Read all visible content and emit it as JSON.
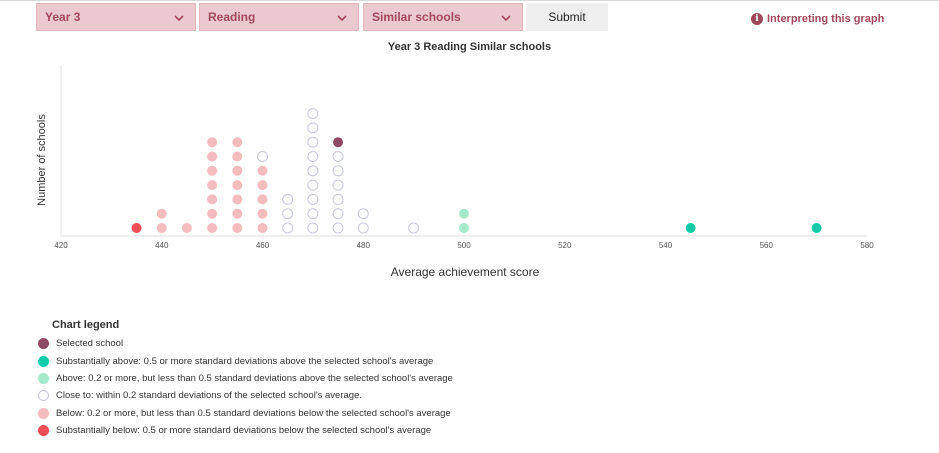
{
  "filters": {
    "year": "Year 3",
    "subject": "Reading",
    "group": "Similar schools",
    "submit_label": "Submit"
  },
  "help_link": "Interpreting this graph",
  "colors": {
    "selected": "#8e4a63",
    "substantially_above": "#12c9a8",
    "above": "#a4eacb",
    "close": "#ffffff",
    "below": "#f5bcbf",
    "substantially_below": "#ee4f56"
  },
  "chart_data": {
    "type": "scatter",
    "title": "Year 3 Reading Similar schools",
    "xlabel": "Average achievement score",
    "ylabel": "Number of schools",
    "xlim": [
      420,
      580
    ],
    "ylim": [
      0,
      12
    ],
    "xticks": [
      420,
      440,
      460,
      480,
      500,
      520,
      540,
      560,
      580
    ],
    "grid": false,
    "columns": [
      {
        "x": 435,
        "counts": {
          "substantially_below": 1
        }
      },
      {
        "x": 440,
        "counts": {
          "below": 2
        }
      },
      {
        "x": 445,
        "counts": {
          "below": 1
        }
      },
      {
        "x": 450,
        "counts": {
          "below": 7
        }
      },
      {
        "x": 455,
        "counts": {
          "below": 7
        }
      },
      {
        "x": 460,
        "counts": {
          "below": 5,
          "close": 1
        }
      },
      {
        "x": 465,
        "counts": {
          "close": 3
        }
      },
      {
        "x": 470,
        "counts": {
          "close": 9
        }
      },
      {
        "x": 475,
        "counts": {
          "close": 6,
          "selected": 1
        }
      },
      {
        "x": 480,
        "counts": {
          "close": 2
        }
      },
      {
        "x": 490,
        "counts": {
          "close": 1
        }
      },
      {
        "x": 500,
        "counts": {
          "above": 2
        }
      },
      {
        "x": 545,
        "counts": {
          "substantially_above": 1
        }
      },
      {
        "x": 570,
        "counts": {
          "substantially_above": 1
        }
      }
    ]
  },
  "legend": {
    "title": "Chart legend",
    "items": [
      {
        "key": "selected",
        "label": "Selected school"
      },
      {
        "key": "substantially_above",
        "label": "Substantially above: 0.5 or more standard deviations above the selected school's average"
      },
      {
        "key": "above",
        "label": "Above: 0.2 or more, but less than 0.5 standard deviations above the selected school's average"
      },
      {
        "key": "close",
        "label": "Close to: within 0.2 standard deviations of the selected school's average."
      },
      {
        "key": "below",
        "label": "Below: 0.2 or more, but less than 0.5 standard deviations below the selected school's average"
      },
      {
        "key": "substantially_below",
        "label": "Substantially below: 0.5 or more standard deviations below the selected school's average"
      }
    ]
  }
}
